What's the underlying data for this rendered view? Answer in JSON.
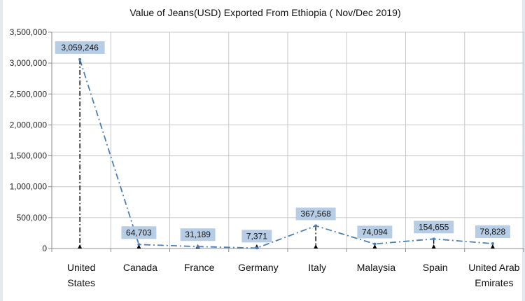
{
  "chart_data": {
    "type": "line",
    "title": "Value of Jeans(USD) Exported From Ethiopia ( Nov/Dec 2019)",
    "xlabel": "",
    "ylabel": "",
    "categories": [
      [
        "United",
        "States"
      ],
      [
        "Canada"
      ],
      [
        "France"
      ],
      [
        "Germany"
      ],
      [
        "Italy"
      ],
      [
        "Malaysia"
      ],
      [
        "Spain"
      ],
      [
        "United Arab",
        "Emirates"
      ]
    ],
    "values": [
      3059246,
      64703,
      31189,
      7371,
      367568,
      74094,
      154655,
      78828
    ],
    "data_labels": [
      "3,059,246",
      "64,703",
      "31,189",
      "7,371",
      "367,568",
      "74,094",
      "154,655",
      "78,828"
    ],
    "y_ticks": [
      "0",
      "500,000",
      "1,000,000",
      "1,500,000",
      "2,000,000",
      "2,500,000",
      "3,000,000",
      "3,500,000"
    ],
    "ylim": [
      0,
      3500000
    ],
    "grid": true,
    "legend": "none",
    "line_style": "dash-dot",
    "colors": {
      "series_line": "#4a7fb5",
      "drop_line": "#000000",
      "label_fill": "#b7cde6",
      "grid": "#c8c8c8",
      "axis": "#8c8c8c"
    }
  }
}
